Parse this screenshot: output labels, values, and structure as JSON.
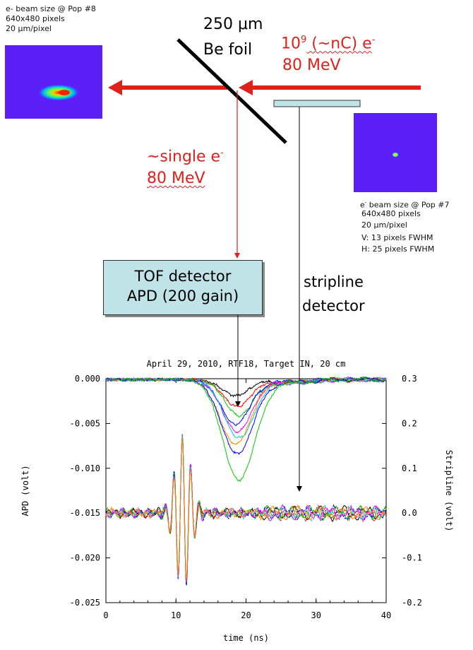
{
  "pop8": {
    "title": "e- beam size @ Pop #8",
    "pixels": "640x480 pixels",
    "scale": "20 μm/pixel"
  },
  "foil": {
    "line1": "250 μm",
    "line2": "Be foil"
  },
  "beam_in": {
    "charge_pre": "10",
    "charge_exp": "9",
    "charge_post": " (~nC) e",
    "charge_sup": "-",
    "energy": "80 MeV"
  },
  "single": {
    "line1_pre": "~single e",
    "line1_sup": "-",
    "energy": "80 MeV"
  },
  "pop7": {
    "title_sup": "-",
    "title_post": " beam size @ Pop #7",
    "title_pre": "e",
    "pixels": "640x480 pixels",
    "scale": "20 μm/pixel",
    "v": "V: 13 pixels FWHM",
    "h": "H: 25 pixels FWHM"
  },
  "tof": {
    "line1": "TOF detector",
    "line2": "APD (200 gain)"
  },
  "stripline": {
    "line1": "stripline",
    "line2": "detector"
  },
  "colors": {
    "beam_red": "#e0201a",
    "beam_image_bg": "#5b1ff5",
    "tof_box": "#bfe3e7"
  },
  "chart_data": {
    "type": "line",
    "title": "April 29, 2010, RTF18, Target IN, 20 cm",
    "xlabel": "time (ns)",
    "ylabel": "APD (volt)",
    "y2label": "Stripline (volt)",
    "xlim": [
      0,
      40
    ],
    "ylim": [
      -0.025,
      0.0
    ],
    "y2lim": [
      -0.2,
      0.3
    ],
    "xticks": [
      0,
      10,
      20,
      30,
      40
    ],
    "yticks": [
      0.0,
      -0.005,
      -0.01,
      -0.015,
      -0.02,
      -0.025
    ],
    "ytick_labels": [
      "0.000",
      "-0.005",
      "-0.010",
      "-0.015",
      "-0.020",
      "-0.025"
    ],
    "y2ticks": [
      0.3,
      0.2,
      0.1,
      0.0,
      -0.1,
      -0.2
    ],
    "y2tick_labels": [
      "0.3",
      "0.2",
      "0.1",
      "0.0",
      "-0.1",
      "-0.2"
    ],
    "apd_series": [
      {
        "color": "#000000",
        "min": -0.0018
      },
      {
        "color": "#ff0000",
        "min": -0.003
      },
      {
        "color": "#00cc00",
        "min": -0.004
      },
      {
        "color": "#0000ff",
        "min": -0.005
      },
      {
        "color": "#ff00ff",
        "min": -0.0058
      },
      {
        "color": "#00cccc",
        "min": -0.0065
      },
      {
        "color": "#ff8800",
        "min": -0.0072
      },
      {
        "color": "#0000ff",
        "min": -0.0083
      },
      {
        "color": "#00cc00",
        "min": -0.0112
      }
    ],
    "stripline_series": [
      {
        "color": "#000000"
      },
      {
        "color": "#ff0000"
      },
      {
        "color": "#00cc00"
      },
      {
        "color": "#0000ff"
      },
      {
        "color": "#ff00ff"
      },
      {
        "color": "#00cccc"
      },
      {
        "color": "#ff8800"
      }
    ]
  }
}
